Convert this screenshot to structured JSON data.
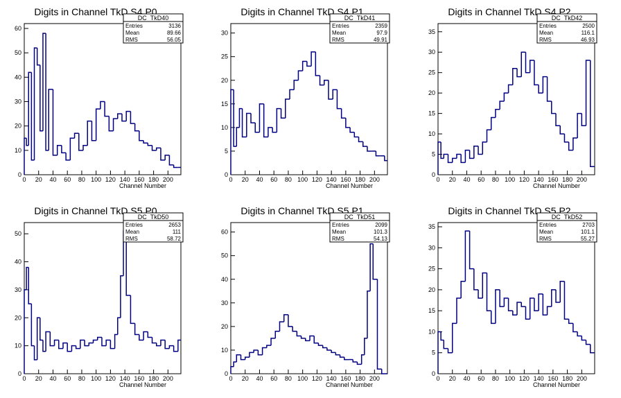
{
  "figure": {
    "xlabel": "Channel Number",
    "stat_labels": [
      "Entries",
      "Mean",
      "RMS"
    ],
    "line_color": "#000080"
  },
  "chart_data": [
    {
      "type": "bar",
      "title": "Digits in Channel TkD S4 P0",
      "stats": {
        "name": "DC_TkD40",
        "entries": "3136",
        "mean": "89.66",
        "rms": "56.05"
      },
      "xlim": [
        0,
        218
      ],
      "ylim": [
        0,
        62
      ],
      "xticks": [
        0,
        20,
        40,
        60,
        80,
        100,
        120,
        140,
        160,
        180,
        200
      ],
      "yticks": [
        0,
        10,
        20,
        30,
        40,
        50,
        60
      ],
      "x": [
        0,
        3,
        6,
        10,
        14,
        18,
        22,
        26,
        30,
        34,
        40,
        46,
        52,
        58,
        64,
        70,
        76,
        82,
        88,
        94,
        100,
        106,
        112,
        118,
        124,
        130,
        136,
        142,
        148,
        154,
        160,
        166,
        172,
        178,
        184,
        190,
        196,
        202,
        208,
        214
      ],
      "values": [
        15,
        12,
        42,
        6,
        52,
        45,
        18,
        58,
        10,
        35,
        8,
        12,
        9,
        6,
        15,
        17,
        10,
        12,
        22,
        14,
        27,
        30,
        24,
        18,
        23,
        25,
        22,
        26,
        21,
        18,
        14,
        13,
        12,
        10,
        11,
        6,
        8,
        4,
        3,
        3
      ]
    },
    {
      "type": "bar",
      "title": "Digits in Channel TkD S4 P1",
      "stats": {
        "name": "DC_TkD41",
        "entries": "2359",
        "mean": "97.9",
        "rms": "49.91"
      },
      "xlim": [
        0,
        218
      ],
      "ylim": [
        0,
        32
      ],
      "xticks": [
        0,
        20,
        40,
        60,
        80,
        100,
        120,
        140,
        160,
        180,
        200
      ],
      "yticks": [
        0,
        5,
        10,
        15,
        20,
        25,
        30
      ],
      "x": [
        0,
        4,
        8,
        12,
        16,
        22,
        28,
        34,
        40,
        46,
        52,
        58,
        64,
        70,
        76,
        82,
        88,
        94,
        100,
        106,
        112,
        118,
        124,
        130,
        136,
        142,
        148,
        154,
        160,
        166,
        172,
        178,
        184,
        190,
        196,
        202,
        208,
        214
      ],
      "values": [
        18,
        6,
        10,
        14,
        8,
        13,
        11,
        9,
        15,
        8,
        10,
        9,
        14,
        12,
        16,
        18,
        20,
        22,
        24,
        23,
        26,
        21,
        19,
        20,
        16,
        18,
        14,
        12,
        10,
        9,
        8,
        7,
        6,
        5,
        5,
        4,
        4,
        3
      ]
    },
    {
      "type": "bar",
      "title": "Digits in Channel TkD S4 P2",
      "stats": {
        "name": "DC_TkD42",
        "entries": "2500",
        "mean": "116.1",
        "rms": "46.93"
      },
      "xlim": [
        0,
        218
      ],
      "ylim": [
        0,
        37
      ],
      "xticks": [
        0,
        20,
        40,
        60,
        80,
        100,
        120,
        140,
        160,
        180,
        200
      ],
      "yticks": [
        0,
        5,
        10,
        15,
        20,
        25,
        30,
        35
      ],
      "x": [
        0,
        4,
        8,
        14,
        20,
        26,
        32,
        38,
        44,
        50,
        56,
        62,
        68,
        74,
        80,
        86,
        92,
        98,
        104,
        110,
        116,
        122,
        128,
        134,
        140,
        146,
        152,
        158,
        164,
        170,
        176,
        182,
        188,
        194,
        200,
        206,
        212
      ],
      "values": [
        8,
        4,
        5,
        3,
        4,
        5,
        3,
        6,
        4,
        7,
        5,
        8,
        11,
        14,
        16,
        18,
        20,
        22,
        26,
        24,
        30,
        25,
        28,
        22,
        20,
        24,
        18,
        15,
        12,
        10,
        8,
        6,
        9,
        15,
        12,
        28,
        2
      ]
    },
    {
      "type": "bar",
      "title": "Digits in Channel TkD S5 P0",
      "stats": {
        "name": "DC_TkD50",
        "entries": "2653",
        "mean": "111",
        "rms": "58.72"
      },
      "xlim": [
        0,
        218
      ],
      "ylim": [
        0,
        54
      ],
      "xticks": [
        0,
        20,
        40,
        60,
        80,
        100,
        120,
        140,
        160,
        180,
        200
      ],
      "yticks": [
        0,
        10,
        20,
        30,
        40,
        50
      ],
      "x": [
        0,
        3,
        6,
        10,
        14,
        18,
        22,
        26,
        30,
        36,
        42,
        48,
        54,
        60,
        66,
        72,
        78,
        84,
        90,
        96,
        102,
        108,
        114,
        120,
        126,
        130,
        134,
        138,
        142,
        148,
        154,
        160,
        166,
        172,
        178,
        184,
        190,
        196,
        202,
        208,
        214
      ],
      "values": [
        30,
        38,
        25,
        10,
        5,
        20,
        12,
        8,
        15,
        10,
        12,
        9,
        11,
        8,
        10,
        9,
        12,
        10,
        11,
        12,
        13,
        10,
        12,
        9,
        14,
        20,
        35,
        51,
        28,
        18,
        14,
        12,
        15,
        13,
        11,
        10,
        12,
        9,
        10,
        8,
        12
      ]
    },
    {
      "type": "bar",
      "title": "Digits in Channel TkD S5 P1",
      "stats": {
        "name": "DC_TkD51",
        "entries": "2099",
        "mean": "101.3",
        "rms": "54.13"
      },
      "xlim": [
        0,
        218
      ],
      "ylim": [
        0,
        64
      ],
      "xticks": [
        0,
        20,
        40,
        60,
        80,
        100,
        120,
        140,
        160,
        180,
        200
      ],
      "yticks": [
        0,
        10,
        20,
        30,
        40,
        50,
        60
      ],
      "x": [
        0,
        4,
        8,
        14,
        20,
        26,
        32,
        38,
        44,
        50,
        56,
        62,
        68,
        74,
        80,
        86,
        92,
        98,
        104,
        110,
        116,
        122,
        128,
        134,
        140,
        146,
        152,
        158,
        164,
        170,
        176,
        182,
        186,
        190,
        194,
        198,
        204,
        210
      ],
      "values": [
        3,
        5,
        8,
        6,
        7,
        9,
        10,
        8,
        11,
        12,
        15,
        18,
        22,
        25,
        20,
        18,
        16,
        15,
        14,
        16,
        13,
        12,
        11,
        10,
        9,
        8,
        7,
        6,
        6,
        5,
        4,
        8,
        15,
        35,
        55,
        40,
        2,
        0
      ]
    },
    {
      "type": "bar",
      "title": "Digits in Channel TkD S5 P2",
      "stats": {
        "name": "DC_TkD52",
        "entries": "2703",
        "mean": "101.1",
        "rms": "55.27"
      },
      "xlim": [
        0,
        218
      ],
      "ylim": [
        0,
        36
      ],
      "xticks": [
        0,
        20,
        40,
        60,
        80,
        100,
        120,
        140,
        160,
        180,
        200
      ],
      "yticks": [
        0,
        5,
        10,
        15,
        20,
        25,
        30,
        35
      ],
      "x": [
        0,
        4,
        8,
        14,
        20,
        26,
        32,
        38,
        44,
        50,
        56,
        62,
        68,
        74,
        80,
        86,
        92,
        98,
        104,
        110,
        116,
        122,
        128,
        134,
        140,
        146,
        152,
        158,
        164,
        170,
        176,
        182,
        188,
        194,
        200,
        206,
        212
      ],
      "values": [
        10,
        8,
        6,
        5,
        12,
        18,
        22,
        34,
        25,
        20,
        18,
        24,
        15,
        12,
        20,
        16,
        18,
        15,
        14,
        17,
        16,
        13,
        18,
        15,
        19,
        14,
        16,
        20,
        17,
        22,
        13,
        12,
        10,
        9,
        8,
        7,
        5
      ]
    }
  ]
}
